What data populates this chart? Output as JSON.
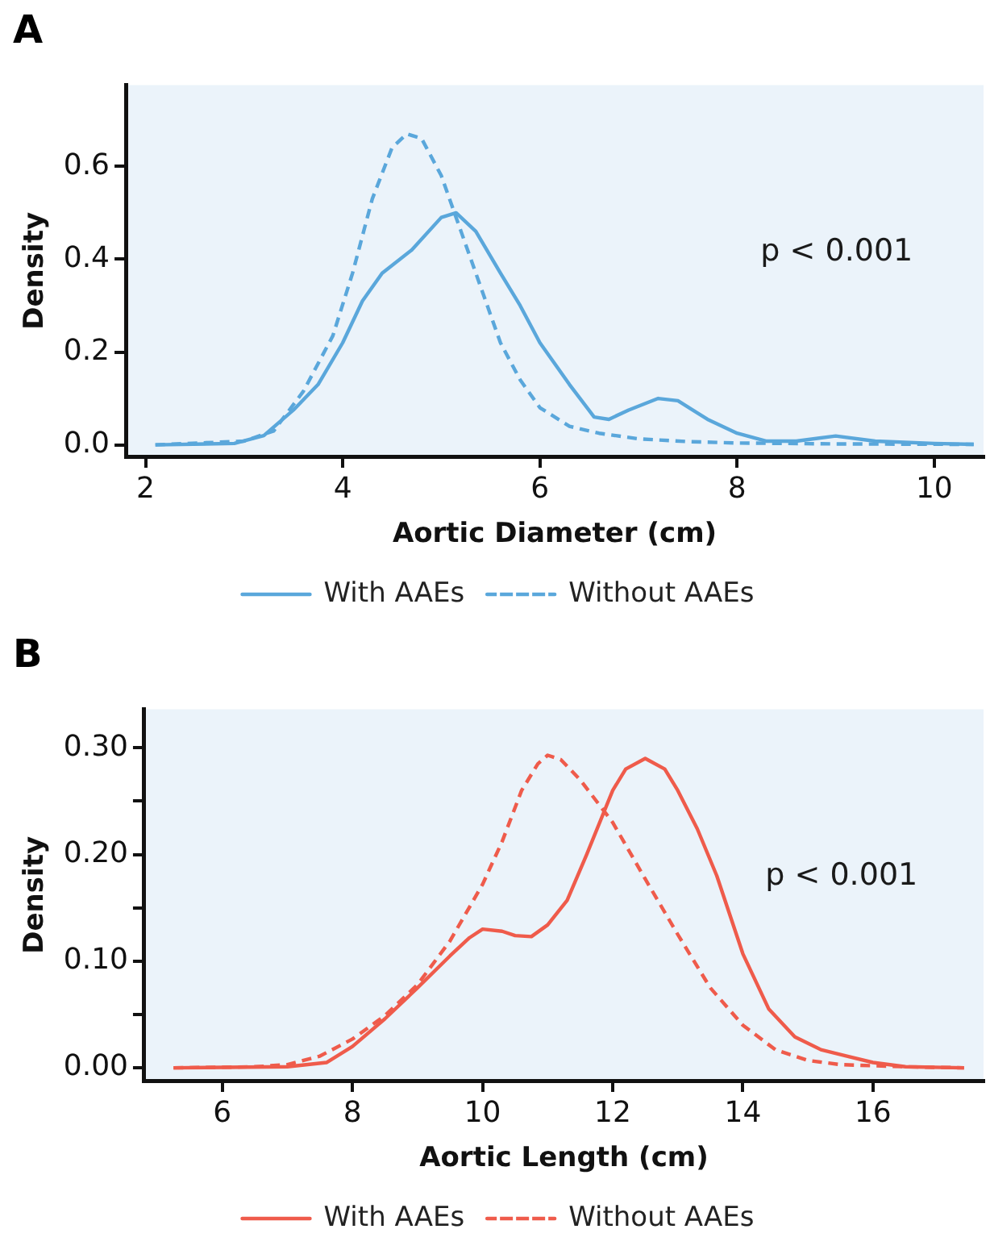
{
  "chart_data": [
    {
      "type": "line",
      "title": "A",
      "xlabel": "Aortic Diameter (cm)",
      "ylabel": "Density",
      "xlim": [
        1.8,
        10.5
      ],
      "xticks": [
        2,
        4,
        6,
        8,
        10
      ],
      "ylim": [
        -0.025,
        0.775
      ],
      "yticks": [
        {
          "value": 0,
          "label": "0.0"
        },
        0.2,
        0.4,
        0.6
      ],
      "grid": false,
      "legend": "bottom",
      "marker": "none",
      "annotations": [
        "p < 0.001"
      ],
      "series": [
        {
          "name": "With AAEs",
          "color": "#5aa7db",
          "line_style": "solid",
          "x": [
            2.1,
            2.9,
            3.2,
            3.5,
            3.75,
            4.0,
            4.2,
            4.4,
            4.7,
            5.0,
            5.15,
            5.35,
            5.6,
            5.8,
            6.0,
            6.3,
            6.55,
            6.7,
            6.9,
            7.2,
            7.4,
            7.7,
            8.0,
            8.3,
            8.6,
            9.0,
            9.4,
            10.0,
            10.4
          ],
          "values": [
            0,
            0.003,
            0.02,
            0.075,
            0.13,
            0.22,
            0.31,
            0.37,
            0.42,
            0.49,
            0.5,
            0.46,
            0.37,
            0.3,
            0.22,
            0.13,
            0.06,
            0.055,
            0.075,
            0.1,
            0.095,
            0.055,
            0.025,
            0.008,
            0.008,
            0.019,
            0.008,
            0.003,
            0.001
          ]
        },
        {
          "name": "Without AAEs",
          "color": "#5aa7db",
          "line_style": "dashed",
          "x": [
            2.1,
            3.0,
            3.3,
            3.6,
            3.9,
            4.1,
            4.3,
            4.5,
            4.65,
            4.8,
            5.0,
            5.2,
            5.4,
            5.6,
            5.8,
            6.0,
            6.3,
            6.6,
            7.0,
            7.5,
            8.0,
            9.0,
            10.4
          ],
          "values": [
            0,
            0.008,
            0.03,
            0.115,
            0.235,
            0.37,
            0.53,
            0.64,
            0.67,
            0.66,
            0.58,
            0.46,
            0.34,
            0.22,
            0.14,
            0.08,
            0.04,
            0.025,
            0.013,
            0.007,
            0.004,
            0.002,
            0.001
          ]
        }
      ]
    },
    {
      "type": "line",
      "title": "B",
      "xlabel": "Aortic Length (cm)",
      "ylabel": "Density",
      "xlim": [
        4.8,
        17.7
      ],
      "xticks": [
        6,
        8,
        10,
        12,
        14,
        16
      ],
      "ylim": [
        -0.012,
        0.336
      ],
      "yticks": [
        {
          "value": 0,
          "label": "0.00"
        },
        {
          "value": 0.05,
          "label": null
        },
        {
          "value": 0.1,
          "label": "0.10"
        },
        {
          "value": 0.15,
          "label": null
        },
        {
          "value": 0.2,
          "label": "0.20"
        },
        {
          "value": 0.25,
          "label": null
        },
        {
          "value": 0.3,
          "label": "0.30"
        }
      ],
      "grid": false,
      "legend": "bottom",
      "marker": "none",
      "annotations": [
        "p < 0.001"
      ],
      "series": [
        {
          "name": "With AAEs",
          "color": "#ef5b4b",
          "line_style": "solid",
          "x": [
            5.25,
            7.0,
            7.6,
            8.0,
            8.5,
            9.0,
            9.5,
            9.8,
            10.0,
            10.3,
            10.5,
            10.75,
            11.0,
            11.3,
            11.6,
            12.0,
            12.2,
            12.5,
            12.8,
            13.0,
            13.3,
            13.6,
            14.0,
            14.4,
            14.8,
            15.2,
            15.6,
            16.0,
            16.5,
            17.4
          ],
          "values": [
            0,
            0.001,
            0.005,
            0.02,
            0.046,
            0.075,
            0.105,
            0.122,
            0.13,
            0.128,
            0.124,
            0.123,
            0.134,
            0.157,
            0.2,
            0.26,
            0.28,
            0.29,
            0.28,
            0.26,
            0.224,
            0.18,
            0.107,
            0.055,
            0.029,
            0.017,
            0.011,
            0.005,
            0.001,
            0
          ]
        },
        {
          "name": "Without AAEs",
          "color": "#ef5b4b",
          "line_style": "dashed",
          "x": [
            5.25,
            6.5,
            7.0,
            7.5,
            8.0,
            8.5,
            9.0,
            9.5,
            10.0,
            10.3,
            10.6,
            10.85,
            11.0,
            11.2,
            11.5,
            12.0,
            12.5,
            13.0,
            13.5,
            14.0,
            14.5,
            15.0,
            15.5,
            16.5,
            17.4
          ],
          "values": [
            0,
            0.001,
            0.003,
            0.011,
            0.027,
            0.049,
            0.078,
            0.119,
            0.172,
            0.212,
            0.26,
            0.285,
            0.293,
            0.289,
            0.27,
            0.23,
            0.177,
            0.125,
            0.075,
            0.04,
            0.017,
            0.007,
            0.003,
            0.001,
            0
          ]
        }
      ]
    }
  ]
}
